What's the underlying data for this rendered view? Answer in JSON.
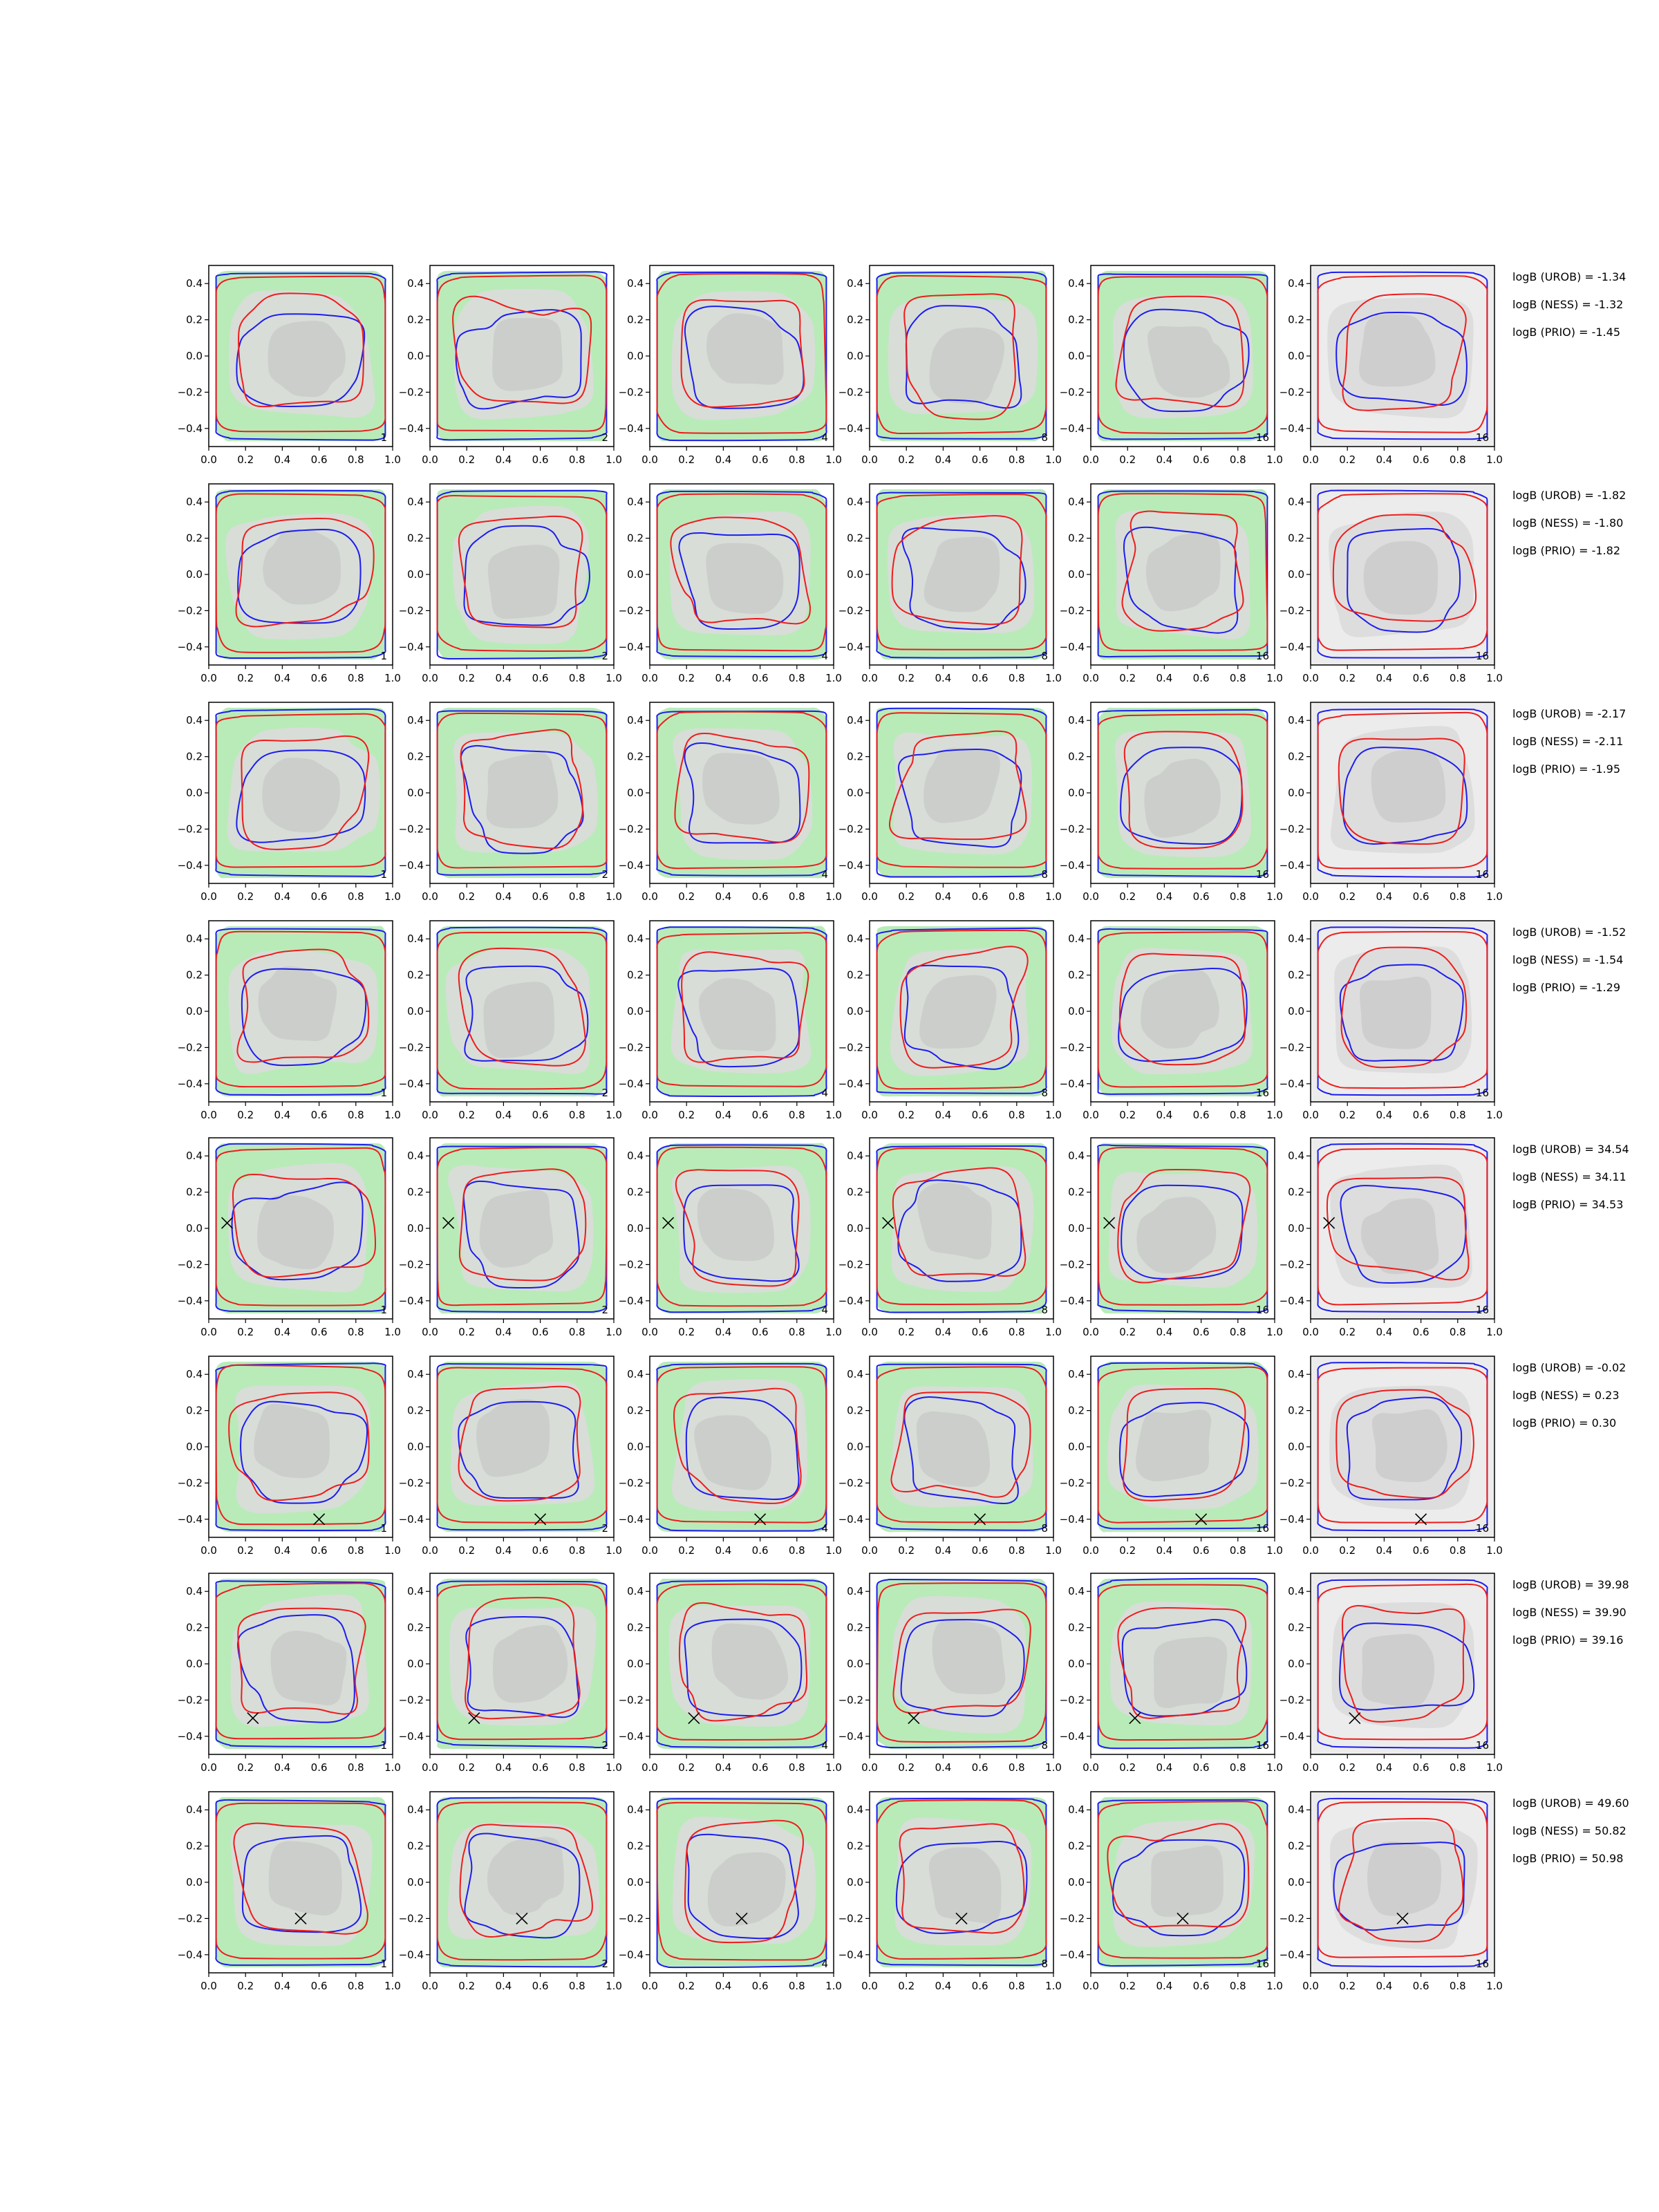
{
  "chart_data": {
    "type": "contour",
    "grid": {
      "rows": 8,
      "cols": 6
    },
    "xlim": [
      0.0,
      1.0
    ],
    "ylim": [
      -0.5,
      0.5
    ],
    "xticks": [
      0.0,
      0.2,
      0.4,
      0.6,
      0.8,
      1.0
    ],
    "yticks": [
      -0.4,
      -0.2,
      0.0,
      0.2,
      0.4
    ],
    "xtick_labels": [
      "0.0",
      "0.2",
      "0.4",
      "0.6",
      "0.8",
      "1.0"
    ],
    "ytick_labels": [
      "−0.4",
      "−0.2",
      "0.0",
      "0.2",
      "0.4"
    ],
    "panel_labels": [
      "1",
      "2",
      "4",
      "8",
      "16",
      "16"
    ],
    "colors": {
      "red_contour": "#ee1c1c",
      "blue_contour": "#1c1cee",
      "green_fill": "#b9ebb9",
      "grey_fill_light": "#dcdcdc",
      "grey_fill_dark": "#c8c8c8",
      "last_col_bg": "#ececec"
    },
    "rows": [
      {
        "bf": [
          "logB (UROB) = -1.34",
          "logB (NESS) = -1.32",
          "logB (PRIO) = -1.45"
        ],
        "marker": null
      },
      {
        "bf": [
          "logB (UROB) = -1.82",
          "logB (NESS) = -1.80",
          "logB (PRIO) = -1.82"
        ],
        "marker": null
      },
      {
        "bf": [
          "logB (UROB) = -2.17",
          "logB (NESS) = -2.11",
          "logB (PRIO) = -1.95"
        ],
        "marker": null
      },
      {
        "bf": [
          "logB (UROB) = -1.52",
          "logB (NESS) = -1.54",
          "logB (PRIO) = -1.29"
        ],
        "marker": null
      },
      {
        "bf": [
          "logB (UROB) = 34.54",
          "logB (NESS) = 34.11",
          "logB (PRIO) = 34.53"
        ],
        "marker": [
          0.1,
          0.03
        ]
      },
      {
        "bf": [
          "logB (UROB) = -0.02",
          "logB (NESS) = 0.23",
          "logB (PRIO) = 0.30"
        ],
        "marker": [
          0.6,
          -0.4
        ]
      },
      {
        "bf": [
          "logB (UROB) = 39.98",
          "logB (NESS) = 39.90",
          "logB (PRIO) = 39.16"
        ],
        "marker": [
          0.24,
          -0.3
        ]
      },
      {
        "bf": [
          "logB (UROB) = 49.60",
          "logB (NESS) = 50.82",
          "logB (PRIO) = 50.98"
        ],
        "marker": [
          0.5,
          -0.2
        ]
      }
    ]
  }
}
